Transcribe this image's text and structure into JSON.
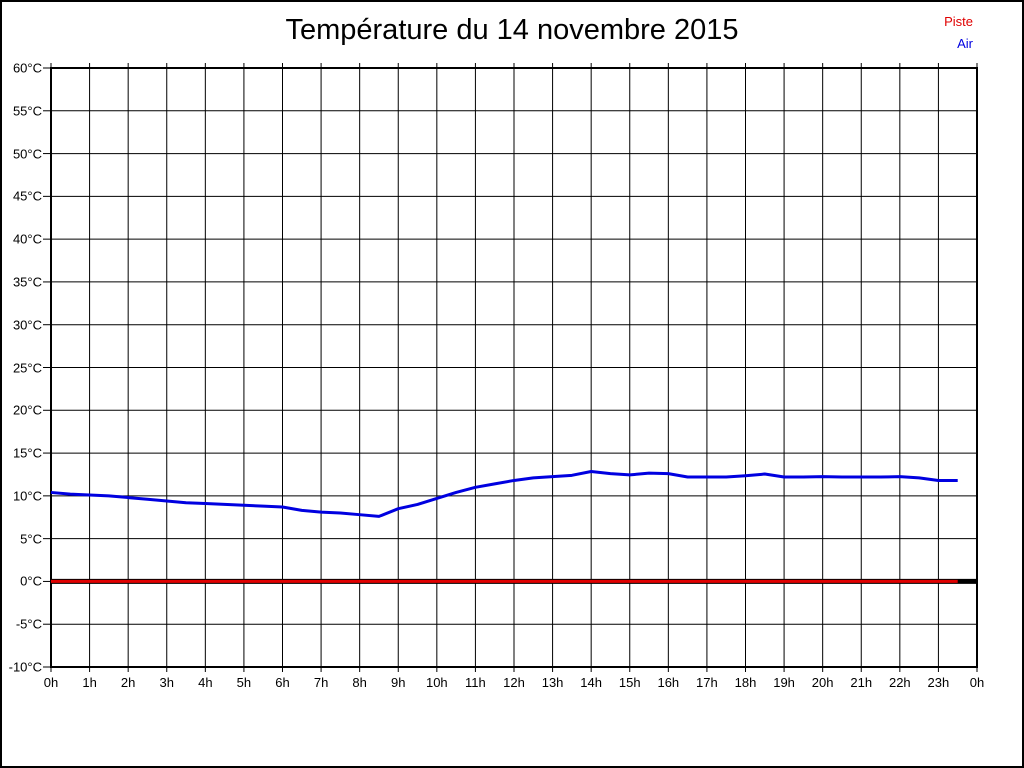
{
  "title": "Température du 14 novembre 2015",
  "legend": {
    "items": [
      {
        "label": "Piste",
        "color": "#e00000"
      },
      {
        "label": "Air",
        "color": "#0000e0"
      }
    ]
  },
  "chart_data": {
    "type": "line",
    "title": "Température du 14 novembre 2015",
    "xlabel": "",
    "ylabel": "",
    "xlim": [
      0,
      24
    ],
    "ylim": [
      -10,
      60
    ],
    "grid": true,
    "legend_position": "top-right",
    "x_ticks": [
      0,
      1,
      2,
      3,
      4,
      5,
      6,
      7,
      8,
      9,
      10,
      11,
      12,
      13,
      14,
      15,
      16,
      17,
      18,
      19,
      20,
      21,
      22,
      23,
      24
    ],
    "x_tick_labels": [
      "0h",
      "1h",
      "2h",
      "3h",
      "4h",
      "5h",
      "6h",
      "7h",
      "8h",
      "9h",
      "10h",
      "11h",
      "12h",
      "13h",
      "14h",
      "15h",
      "16h",
      "17h",
      "18h",
      "19h",
      "20h",
      "21h",
      "22h",
      "23h",
      "0h"
    ],
    "y_ticks": [
      60,
      55,
      50,
      45,
      40,
      35,
      30,
      25,
      20,
      15,
      10,
      5,
      0,
      -5,
      -10
    ],
    "y_tick_labels": [
      "60°C",
      "55°C",
      "50°C",
      "45°C",
      "40°C",
      "35°C",
      "30°C",
      "25°C",
      "20°C",
      "15°C",
      "10°C",
      "5°C",
      "0°C",
      "-5°C",
      "-10°C"
    ],
    "zero_axis": {
      "value": 0,
      "color": "#000000"
    },
    "series": [
      {
        "name": "Piste",
        "color": "#e00000",
        "x": [
          0,
          23.5
        ],
        "values": [
          0,
          0
        ]
      },
      {
        "name": "Air",
        "color": "#0000e0",
        "x": [
          0,
          0.5,
          1,
          1.5,
          2,
          2.5,
          3,
          3.5,
          4,
          4.5,
          5,
          5.5,
          6,
          6.5,
          7,
          7.5,
          8,
          8.5,
          9,
          9.5,
          10,
          10.5,
          11,
          11.5,
          12,
          12.5,
          13,
          13.5,
          14,
          14.5,
          15,
          15.5,
          16,
          16.5,
          17,
          17.5,
          18,
          18.5,
          19,
          19.5,
          20,
          20.5,
          21,
          21.5,
          22,
          22.5,
          23,
          23.5
        ],
        "values": [
          10.4,
          10.2,
          10.1,
          10,
          9.8,
          9.6,
          9.4,
          9.2,
          9.1,
          9,
          8.9,
          8.8,
          8.7,
          8.3,
          8.1,
          8,
          7.8,
          7.6,
          8.5,
          9,
          9.7,
          10.4,
          11,
          11.4,
          11.8,
          12.1,
          12.25,
          12.4,
          12.85,
          12.6,
          12.45,
          12.65,
          12.6,
          12.2,
          12.2,
          12.2,
          12.35,
          12.55,
          12.2,
          12.2,
          12.25,
          12.2,
          12.2,
          12.2,
          12.25,
          12.1,
          11.8,
          11.8
        ]
      }
    ]
  }
}
